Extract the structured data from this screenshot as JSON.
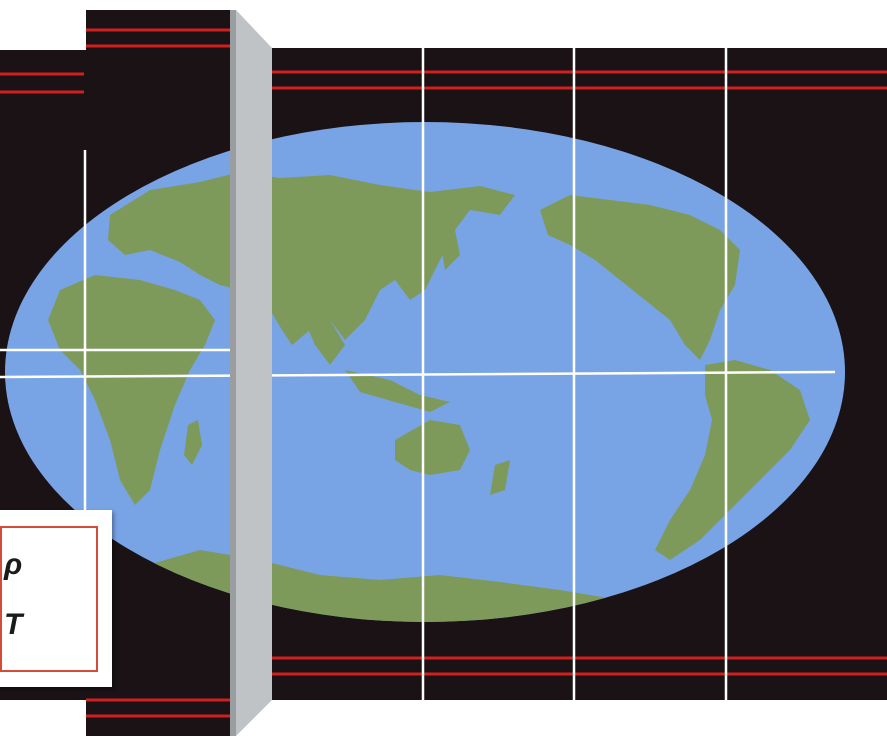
{
  "map": {
    "projection": "Mollweide",
    "colors": {
      "background": "#ffffff",
      "panel": "#1a1214",
      "stripe": "#d21f1f",
      "ocean": "#78a4e6",
      "land": "#7e9a5a",
      "grid": "#ffffff",
      "slat": "#bfc3c6",
      "slat_shadow": "#9a9ea1"
    }
  },
  "card": {
    "glyphs": [
      "ρ",
      "T"
    ],
    "border_color": "#d64a3a"
  }
}
